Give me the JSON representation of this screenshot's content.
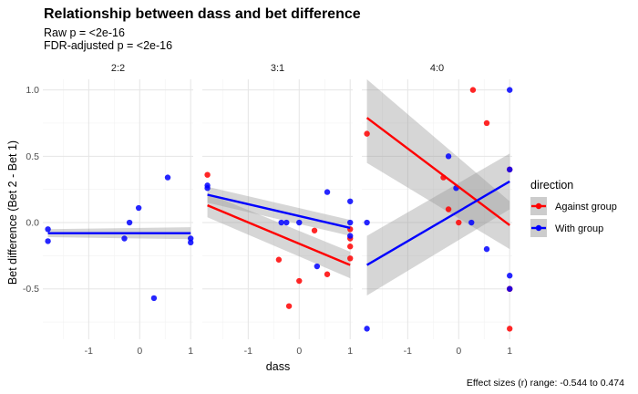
{
  "chart_data": {
    "type": "scatter",
    "title": "Relationship between dass and bet difference",
    "subtitle_lines": [
      "Raw p = <2e-16",
      "FDR-adjusted p = <2e-16"
    ],
    "xlabel": "dass",
    "ylabel": "Bet difference (Bet 2 - Bet 1)",
    "caption": "Effect sizes (r) range: -0.544 to 0.474",
    "xlim": [
      -1.9,
      1.05
    ],
    "ylim": [
      -0.88,
      1.08
    ],
    "x_ticks": [
      -1,
      0,
      1
    ],
    "x_tick_labels": [
      "-1",
      "0",
      "1"
    ],
    "y_ticks": [
      -0.5,
      0.0,
      0.5,
      1.0
    ],
    "y_tick_labels": [
      "-0.5",
      "0.0",
      "0.5",
      "1.0"
    ],
    "grid": true,
    "legend": {
      "title": "direction",
      "position": "right",
      "entries": [
        {
          "label": "Against group",
          "color": "#ff0000"
        },
        {
          "label": "With group",
          "color": "#0000ff"
        }
      ]
    },
    "facets": [
      {
        "label": "2:2",
        "series": [
          {
            "name": "Against group",
            "color": "#ff0000",
            "points": [],
            "fit": null
          },
          {
            "name": "With group",
            "color": "#0000ff",
            "points": [
              [
                -1.8,
                -0.05
              ],
              [
                -1.8,
                -0.14
              ],
              [
                -0.3,
                -0.12
              ],
              [
                -0.2,
                0.0
              ],
              [
                -0.02,
                0.11
              ],
              [
                0.28,
                -0.57
              ],
              [
                0.55,
                0.34
              ],
              [
                1.0,
                -0.12
              ],
              [
                1.0,
                -0.15
              ]
            ],
            "fit": {
              "x": [
                -1.8,
                1.0
              ],
              "y": [
                -0.08,
                -0.08
              ],
              "band": [
                [
                  -0.11,
                  -0.05
                ],
                [
                  -0.125,
                  -0.035
                ]
              ]
            }
          }
        ]
      },
      {
        "label": "3:1",
        "series": [
          {
            "name": "Against group",
            "color": "#ff0000",
            "points": [
              [
                -1.8,
                0.36
              ],
              [
                -0.4,
                -0.28
              ],
              [
                -0.2,
                -0.63
              ],
              [
                0.0,
                -0.44
              ],
              [
                0.3,
                -0.06
              ],
              [
                0.55,
                -0.39
              ],
              [
                1.0,
                -0.05
              ],
              [
                1.0,
                -0.12
              ],
              [
                1.0,
                -0.18
              ],
              [
                1.0,
                -0.27
              ]
            ],
            "fit": {
              "x": [
                -1.8,
                1.0
              ],
              "y": [
                0.13,
                -0.32
              ],
              "band": [
                [
                  0.04,
                  0.22
                ],
                [
                  -0.42,
                  -0.22
                ]
              ]
            }
          },
          {
            "name": "With group",
            "color": "#0000ff",
            "points": [
              [
                -1.8,
                0.28
              ],
              [
                -1.8,
                0.26
              ],
              [
                -0.35,
                0.0
              ],
              [
                -0.25,
                0.0
              ],
              [
                0.0,
                0.0
              ],
              [
                0.35,
                -0.33
              ],
              [
                0.55,
                0.23
              ],
              [
                1.0,
                0.16
              ],
              [
                1.0,
                0.0
              ],
              [
                1.0,
                -0.1
              ]
            ],
            "fit": {
              "x": [
                -1.8,
                1.0
              ],
              "y": [
                0.21,
                -0.04
              ],
              "band": [
                [
                  0.15,
                  0.27
                ],
                [
                  -0.1,
                  0.02
                ]
              ]
            }
          }
        ]
      },
      {
        "label": "4:0",
        "series": [
          {
            "name": "Against group",
            "color": "#ff0000",
            "points": [
              [
                -1.8,
                0.67
              ],
              [
                -0.3,
                0.34
              ],
              [
                -0.2,
                0.1
              ],
              [
                0.0,
                0.0
              ],
              [
                0.28,
                1.0
              ],
              [
                0.55,
                0.75
              ],
              [
                1.0,
                -0.5
              ],
              [
                1.0,
                -0.5
              ],
              [
                1.0,
                -0.8
              ],
              [
                1.0,
                0.4
              ]
            ],
            "fit": {
              "x": [
                -1.8,
                1.0
              ],
              "y": [
                0.79,
                -0.02
              ],
              "band": [
                [
                  0.45,
                  1.08
                ],
                [
                  -0.2,
                  0.16
                ]
              ]
            }
          },
          {
            "name": "With group",
            "color": "#0000ff",
            "points": [
              [
                -1.8,
                0.0
              ],
              [
                -1.8,
                -0.8
              ],
              [
                -0.2,
                0.5
              ],
              [
                -0.05,
                0.26
              ],
              [
                0.25,
                0.0
              ],
              [
                0.55,
                -0.2
              ],
              [
                1.0,
                1.0
              ],
              [
                1.0,
                0.4
              ],
              [
                1.0,
                -0.4
              ],
              [
                1.0,
                -0.5
              ]
            ],
            "fit": {
              "x": [
                -1.8,
                1.0
              ],
              "y": [
                -0.32,
                0.31
              ],
              "band": [
                [
                  -0.55,
                  -0.1
                ],
                [
                  0.1,
                  0.52
                ]
              ]
            }
          }
        ]
      }
    ]
  }
}
